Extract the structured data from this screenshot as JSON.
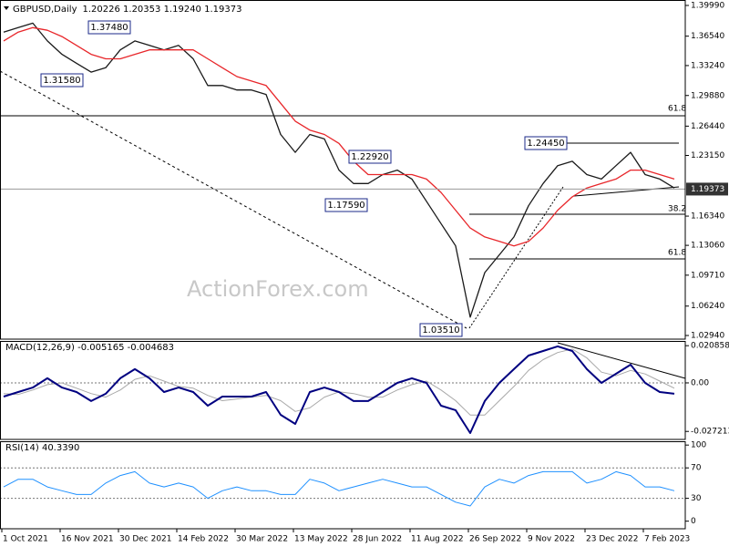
{
  "chart_data": [
    {
      "type": "line",
      "title": "GBPUSD,Daily",
      "subtitle": "1.20226 1.20353 1.19240 1.19373",
      "x": [
        2,
        10,
        18,
        26,
        34,
        42,
        50,
        58,
        66,
        74,
        82,
        90,
        98,
        106,
        114,
        122,
        130,
        138,
        146,
        154,
        162,
        170,
        178,
        186,
        194,
        202,
        210,
        218,
        226,
        234,
        242,
        250,
        258,
        266,
        274,
        282,
        290,
        298,
        306,
        314,
        322,
        330,
        338,
        346,
        354,
        362,
        370
      ],
      "series": [
        {
          "color": "#1a1a1a",
          "values": [
            1.37,
            1.375,
            1.38,
            1.36,
            1.345,
            1.335,
            1.325,
            1.33,
            1.35,
            1.36,
            1.355,
            1.35,
            1.355,
            1.34,
            1.31,
            1.31,
            1.305,
            1.305,
            1.3,
            1.255,
            1.235,
            1.255,
            1.25,
            1.215,
            1.2,
            1.2,
            1.21,
            1.215,
            1.205,
            1.18,
            1.155,
            1.13,
            1.05,
            1.1,
            1.12,
            1.14,
            1.175,
            1.2,
            1.22,
            1.225,
            1.21,
            1.205,
            1.22,
            1.235,
            1.21,
            1.205,
            1.195
          ]
        },
        {
          "color": "#e8262a",
          "values": [
            1.36,
            1.37,
            1.375,
            1.372,
            1.365,
            1.355,
            1.345,
            1.34,
            1.34,
            1.345,
            1.35,
            1.35,
            1.35,
            1.35,
            1.34,
            1.33,
            1.32,
            1.315,
            1.31,
            1.29,
            1.27,
            1.26,
            1.255,
            1.245,
            1.225,
            1.21,
            1.21,
            1.21,
            1.21,
            1.205,
            1.19,
            1.17,
            1.15,
            1.14,
            1.135,
            1.13,
            1.135,
            1.15,
            1.17,
            1.185,
            1.195,
            1.2,
            1.205,
            1.215,
            1.215,
            1.21,
            1.205
          ]
        }
      ],
      "current": 1.19373,
      "annotations": [
        "1.37480",
        "1.31580",
        "1.22920",
        "1.17590",
        "1.03510",
        "1.24450",
        "61.8",
        "38.2",
        "61.8"
      ],
      "watermark": "ActionForex.com",
      "xlim": [
        0,
        376
      ],
      "ylim": [
        1.0253,
        1.406
      ],
      "yticks": [
        {
          "value": 1.3999,
          "label": "1.39990"
        },
        {
          "value": 1.3654,
          "label": "1.36540"
        },
        {
          "value": 1.3324,
          "label": "1.33240"
        },
        {
          "value": 1.2988,
          "label": "1.29880"
        },
        {
          "value": 1.2644,
          "label": "1.26440"
        },
        {
          "value": 1.2315,
          "label": "1.23150"
        },
        {
          "value": 1.1634,
          "label": "1.16340"
        },
        {
          "value": 1.1306,
          "label": "1.13060"
        },
        {
          "value": 1.0971,
          "label": "1.09710"
        },
        {
          "value": 1.0624,
          "label": "1.06240"
        },
        {
          "value": 1.0294,
          "label": "1.02940"
        }
      ]
    },
    {
      "type": "line",
      "title": "MACD(12,26,9) -0.005165 -0.004683",
      "x": [
        2,
        10,
        18,
        26,
        34,
        42,
        50,
        58,
        66,
        74,
        82,
        90,
        98,
        106,
        114,
        122,
        130,
        138,
        146,
        154,
        162,
        170,
        178,
        186,
        194,
        202,
        210,
        218,
        226,
        234,
        242,
        250,
        258,
        266,
        274,
        282,
        290,
        298,
        306,
        314,
        322,
        330,
        338,
        346,
        354,
        362,
        370
      ],
      "series": [
        {
          "color": "#a8a8a8",
          "width": 1,
          "values": [
            -0.006,
            -0.0065,
            -0.004,
            -0.001,
            0,
            -0.003,
            -0.006,
            -0.008,
            -0.004,
            0.002,
            0.004,
            0.001,
            -0.002,
            -0.003,
            -0.007,
            -0.01,
            -0.009,
            -0.008,
            -0.007,
            -0.01,
            -0.016,
            -0.014,
            -0.008,
            -0.005,
            -0.006,
            -0.008,
            -0.008,
            -0.004,
            -0.001,
            0.001,
            -0.004,
            -0.01,
            -0.018,
            -0.018,
            -0.01,
            -0.002,
            0.007,
            0.013,
            0.017,
            0.019,
            0.014,
            0.006,
            0.004,
            0.007,
            0.005,
            0.001,
            -0.003
          ]
        },
        {
          "color": "#000080",
          "width": 2,
          "values": [
            -0.0077,
            -0.0051,
            -0.0026,
            0.0026,
            -0.0026,
            -0.0051,
            -0.0102,
            -0.0061,
            0.0026,
            0.0077,
            0.0026,
            -0.0051,
            -0.0026,
            -0.0051,
            -0.0128,
            -0.0077,
            -0.0077,
            -0.0077,
            -0.0051,
            -0.0179,
            -0.023,
            -0.0051,
            -0.0026,
            -0.0051,
            -0.0102,
            -0.0102,
            -0.0051,
            0,
            0.0026,
            0,
            -0.0128,
            -0.0153,
            -0.0281,
            -0.0102,
            0,
            0.0077,
            0.0153,
            0.0179,
            0.0205,
            0.0179,
            0.0077,
            0,
            0.0051,
            0.0102,
            0,
            -0.0051,
            -0.0061
          ]
        }
      ],
      "xlim": [
        0,
        376
      ],
      "ylim": [
        -0.0317,
        0.0235
      ],
      "yticks": [
        0.020858,
        {
          "value": 0,
          "label": "0.00"
        },
        -0.027213
      ],
      "levels": [
        0
      ]
    },
    {
      "type": "line",
      "title": "RSI(14) 40.3390",
      "x": [
        2,
        10,
        18,
        26,
        34,
        42,
        50,
        58,
        66,
        74,
        82,
        90,
        98,
        106,
        114,
        122,
        130,
        138,
        146,
        154,
        162,
        170,
        178,
        186,
        194,
        202,
        210,
        218,
        226,
        234,
        242,
        250,
        258,
        266,
        274,
        282,
        290,
        298,
        306,
        314,
        322,
        330,
        338,
        346,
        354,
        362,
        370
      ],
      "series": [
        {
          "color": "#1e90ff",
          "width": 1,
          "values": [
            45,
            55,
            55,
            45,
            40,
            35,
            35,
            50,
            60,
            65,
            50,
            45,
            50,
            45,
            30,
            40,
            45,
            40,
            40,
            35,
            35,
            55,
            50,
            40,
            45,
            50,
            55,
            50,
            45,
            45,
            35,
            25,
            20,
            45,
            55,
            50,
            60,
            65,
            65,
            65,
            50,
            55,
            65,
            60,
            45,
            45,
            40
          ]
        }
      ],
      "xlim": [
        0,
        376
      ],
      "ylim": [
        -10,
        105
      ],
      "yticks": [
        100,
        70,
        30,
        0
      ],
      "levels": [
        70,
        30
      ],
      "xticks": [
        {
          "value": 1,
          "label": "1 Oct 2021"
        },
        {
          "value": 33,
          "label": "16 Nov 2021"
        },
        {
          "value": 65,
          "label": "30 Dec 2021"
        },
        {
          "value": 97,
          "label": "14 Feb 2022"
        },
        {
          "value": 129,
          "label": "30 Mar 2022"
        },
        {
          "value": 161,
          "label": "13 May 2022"
        },
        {
          "value": 193,
          "label": "28 Jun 2022"
        },
        {
          "value": 225,
          "label": "11 Aug 2022"
        },
        {
          "value": 257,
          "label": "26 Sep 2022"
        },
        {
          "value": 289,
          "label": "9 Nov 2022"
        },
        {
          "value": 321,
          "label": "23 Dec 2022"
        },
        {
          "value": 353,
          "label": "7 Feb 2023"
        }
      ]
    }
  ]
}
